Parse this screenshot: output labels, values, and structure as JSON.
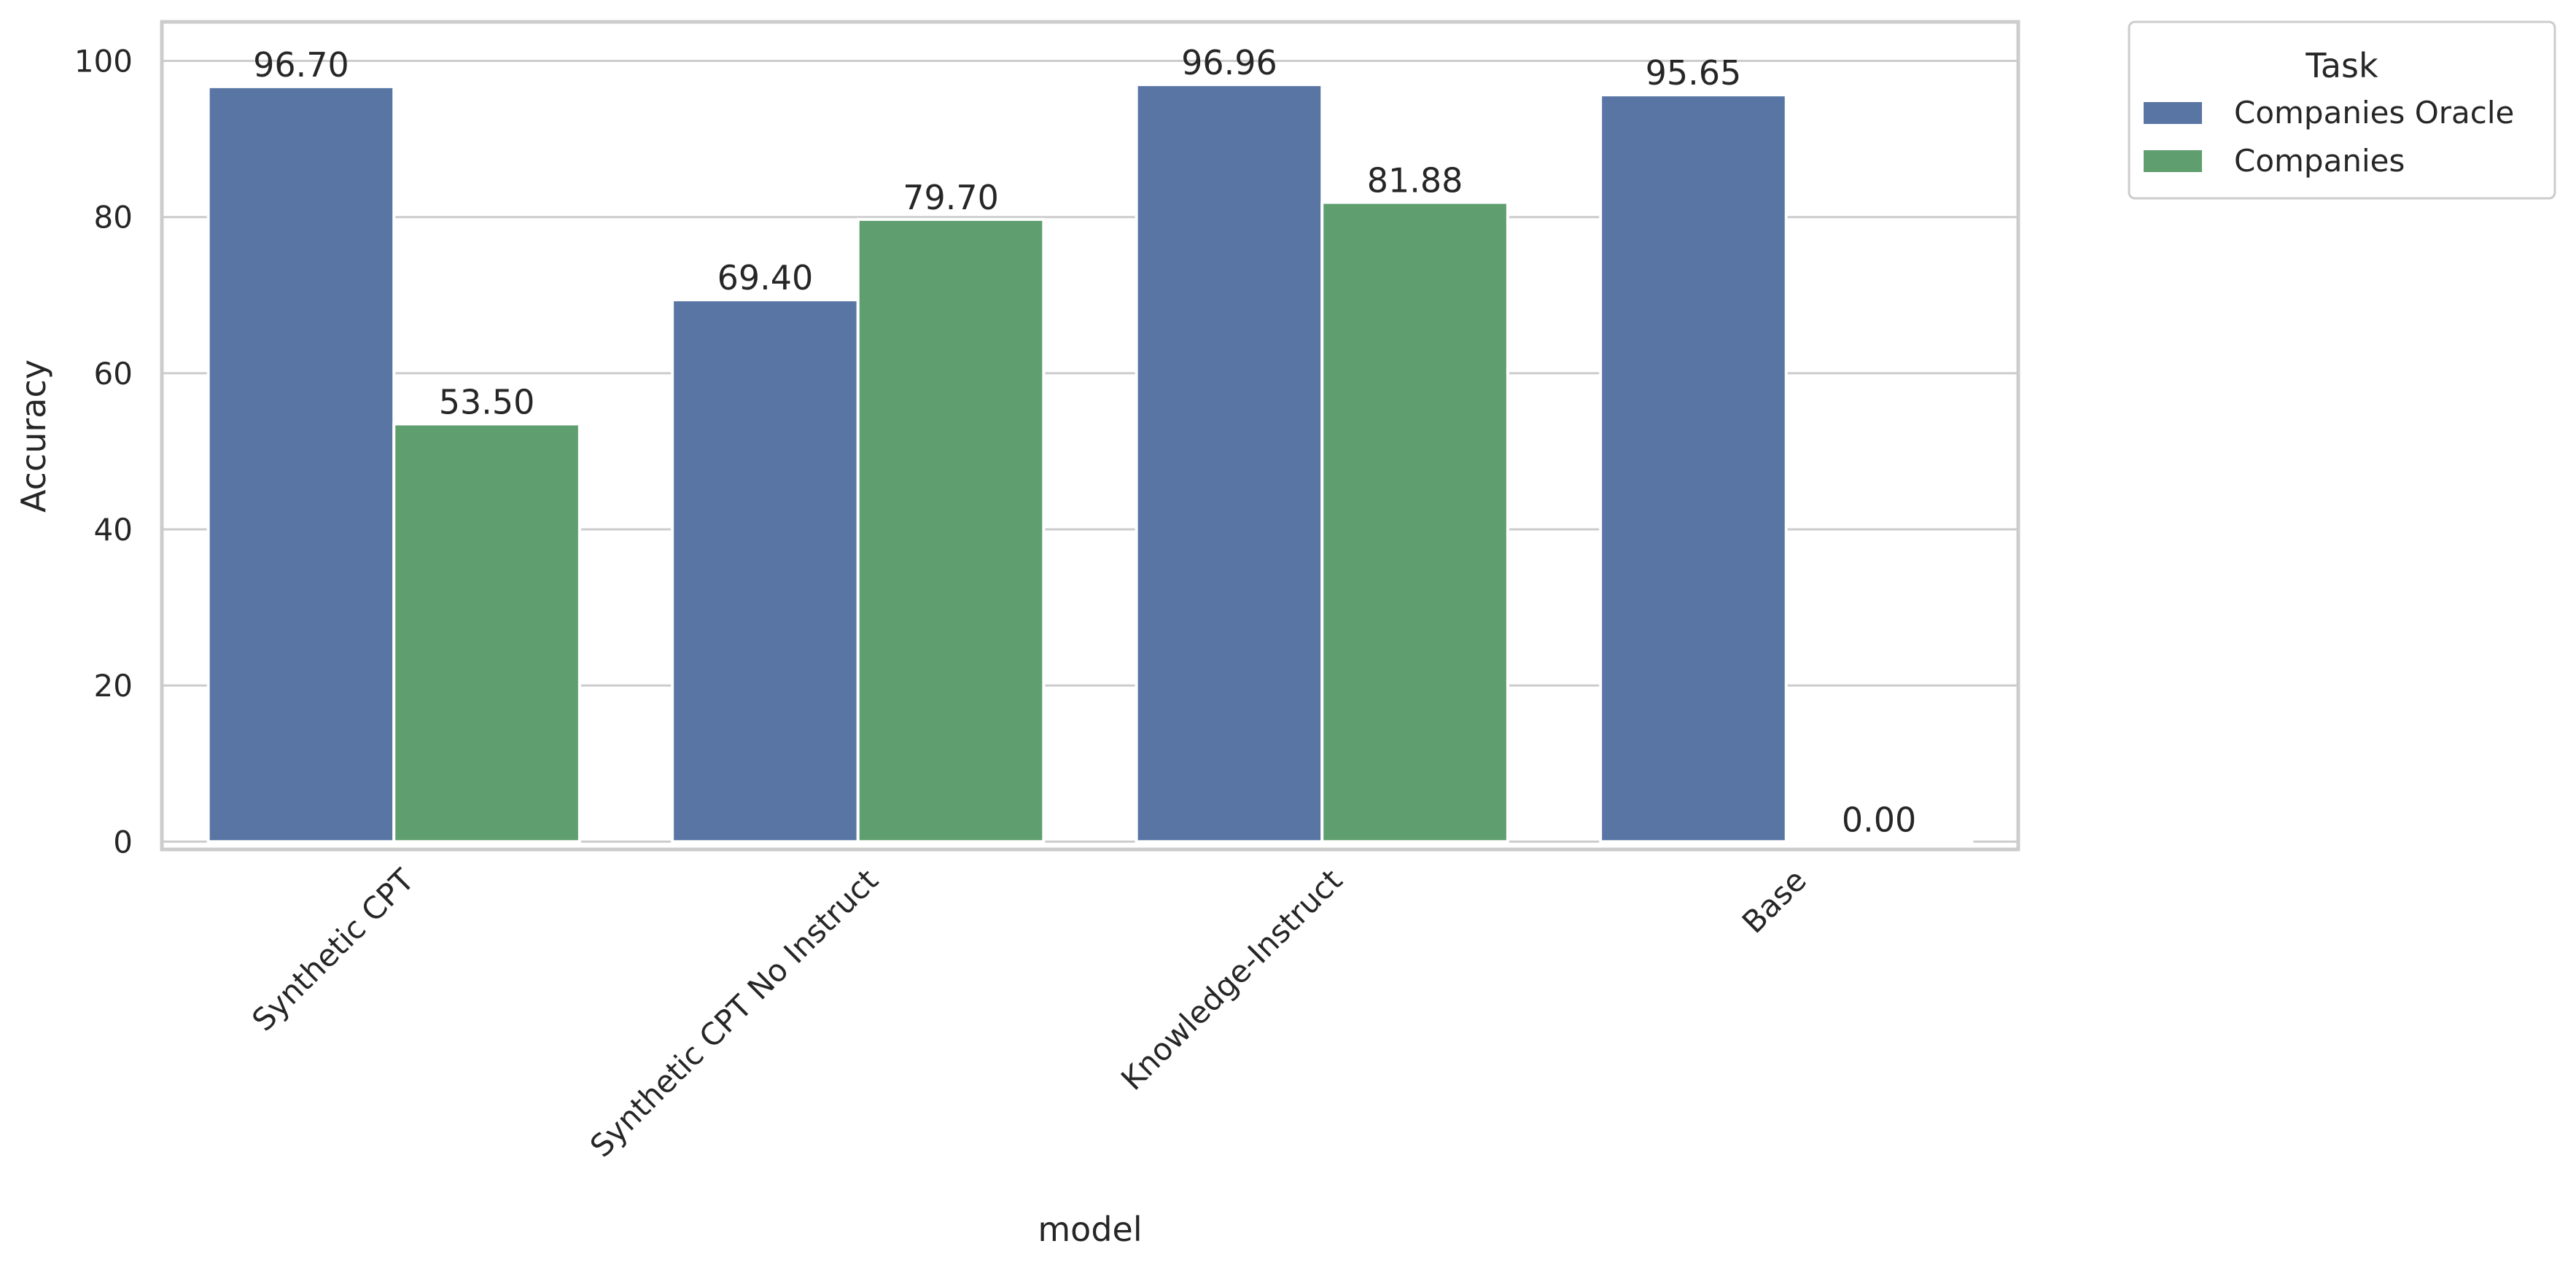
{
  "chart_data": {
    "type": "bar",
    "xlabel": "model",
    "ylabel": "Accuracy",
    "categories": [
      "Synthetic CPT",
      "Synthetic CPT No Instruct",
      "Knowledge-Instruct",
      "Base"
    ],
    "series": [
      {
        "name": "Companies Oracle",
        "values": [
          96.7,
          69.4,
          96.96,
          95.65
        ],
        "color": "#5875a4"
      },
      {
        "name": "Companies",
        "values": [
          53.5,
          79.7,
          81.88,
          0.0
        ],
        "color": "#5f9e6e"
      }
    ],
    "data_labels": [
      [
        "96.70",
        "69.40",
        "96.96",
        "95.65"
      ],
      [
        "53.50",
        "79.70",
        "81.88",
        "0.00"
      ]
    ],
    "yticks": [
      0,
      20,
      40,
      60,
      80,
      100
    ],
    "ylim": [
      -1.0,
      105.0
    ],
    "grid": "horizontal",
    "legend": {
      "title": "Task",
      "placement": "outside-top-right"
    },
    "colors": {
      "grid": "#cccccc",
      "frame": "#cccccc",
      "background": "#ffffff"
    }
  }
}
